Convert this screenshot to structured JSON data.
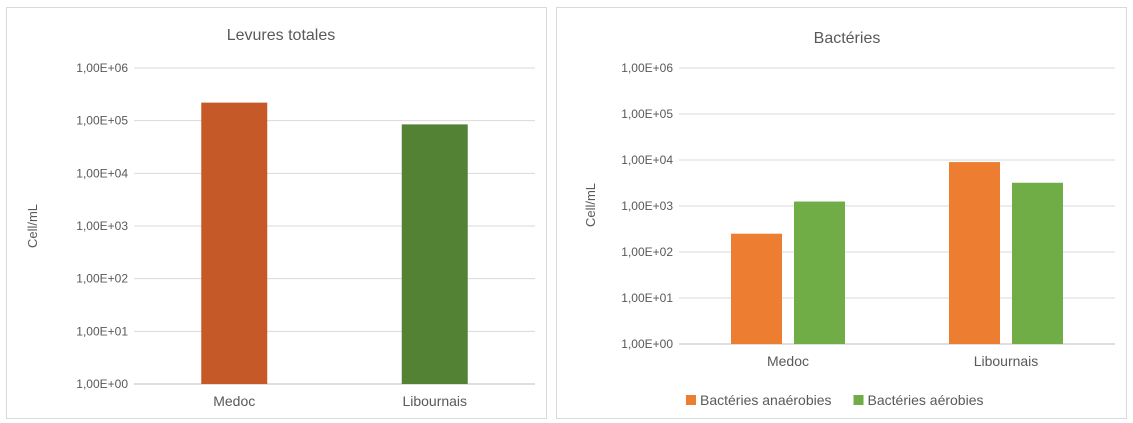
{
  "chart_data": [
    {
      "type": "bar",
      "title": "Levures totales",
      "ylabel": "Cell/mL",
      "xlabel": "",
      "yscale": "log",
      "ylim": [
        1,
        1000000
      ],
      "yticks": [
        "1,00E+00",
        "1,00E+01",
        "1,00E+02",
        "1,00E+03",
        "1,00E+04",
        "1,00E+05",
        "1,00E+06"
      ],
      "categories": [
        "Medoc",
        "Libournais"
      ],
      "values": [
        220000,
        85000
      ],
      "bar_colors": [
        "#c55a28",
        "#548235"
      ],
      "grid": true,
      "legend": false
    },
    {
      "type": "bar",
      "title": "Bactéries",
      "ylabel": "Cell/mL",
      "xlabel": "",
      "yscale": "log",
      "ylim": [
        1,
        1000000
      ],
      "yticks": [
        "1,00E+00",
        "1,00E+01",
        "1,00E+02",
        "1,00E+03",
        "1,00E+04",
        "1,00E+05",
        "1,00E+06"
      ],
      "categories": [
        "Medoc",
        "Libournais"
      ],
      "series": [
        {
          "name": "Bactéries anaérobies",
          "values": [
            250,
            9000
          ],
          "color": "#ed7d31"
        },
        {
          "name": "Bactéries aérobies",
          "values": [
            1250,
            3200
          ],
          "color": "#70ad47"
        }
      ],
      "grid": true,
      "legend": "bottom"
    }
  ]
}
